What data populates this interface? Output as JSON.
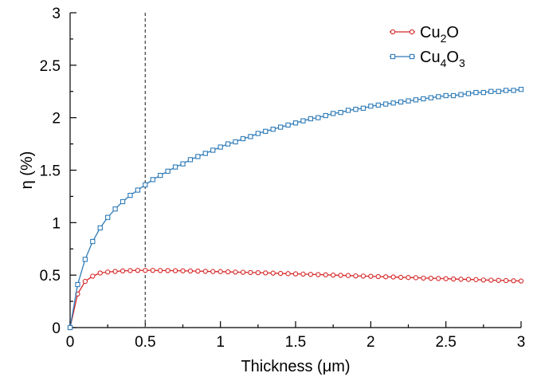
{
  "chart_data": {
    "type": "line",
    "xlabel": "Thickness (μm)",
    "ylabel": "η (%)",
    "xlim": [
      0,
      3
    ],
    "ylim": [
      0,
      3
    ],
    "x_ticks": [
      "0",
      "0.5",
      "1",
      "1.5",
      "2",
      "2.5",
      "3"
    ],
    "y_ticks": [
      "0",
      "0.5",
      "1",
      "1.5",
      "2",
      "2.5",
      "3"
    ],
    "x_minor_step": 0.25,
    "y_minor_step": 0.25,
    "grid": false,
    "legend_position": "top-right",
    "vline": {
      "x": 0.5,
      "style": "dashed",
      "color": "#555555"
    },
    "series": [
      {
        "name": "Cu₂O",
        "legend": {
          "base": "Cu",
          "sub1": "2",
          "mid": "O",
          "sub2": ""
        },
        "color": "#d62728",
        "marker": "circle",
        "x": [
          0,
          0.05,
          0.1,
          0.15,
          0.2,
          0.25,
          0.3,
          0.35,
          0.4,
          0.45,
          0.5,
          0.55,
          0.6,
          0.65,
          0.7,
          0.75,
          0.8,
          0.85,
          0.9,
          0.95,
          1.0,
          1.05,
          1.1,
          1.15,
          1.2,
          1.25,
          1.3,
          1.35,
          1.4,
          1.45,
          1.5,
          1.55,
          1.6,
          1.65,
          1.7,
          1.75,
          1.8,
          1.85,
          1.9,
          1.95,
          2.0,
          2.05,
          2.1,
          2.15,
          2.2,
          2.25,
          2.3,
          2.35,
          2.4,
          2.45,
          2.5,
          2.55,
          2.6,
          2.65,
          2.7,
          2.75,
          2.8,
          2.85,
          2.9,
          2.95,
          3.0
        ],
        "y": [
          0,
          0.32,
          0.44,
          0.49,
          0.52,
          0.53,
          0.535,
          0.54,
          0.543,
          0.545,
          0.545,
          0.545,
          0.544,
          0.543,
          0.542,
          0.541,
          0.539,
          0.538,
          0.536,
          0.534,
          0.533,
          0.531,
          0.529,
          0.527,
          0.525,
          0.523,
          0.521,
          0.519,
          0.516,
          0.514,
          0.512,
          0.51,
          0.507,
          0.505,
          0.503,
          0.5,
          0.498,
          0.496,
          0.493,
          0.491,
          0.489,
          0.486,
          0.484,
          0.482,
          0.479,
          0.477,
          0.475,
          0.472,
          0.47,
          0.468,
          0.466,
          0.463,
          0.461,
          0.459,
          0.457,
          0.454,
          0.452,
          0.45,
          0.448,
          0.446,
          0.444
        ]
      },
      {
        "name": "Cu₄O₃",
        "legend": {
          "base": "Cu",
          "sub1": "4",
          "mid": "O",
          "sub2": "3"
        },
        "color": "#2e7bb8",
        "marker": "square",
        "x": [
          0,
          0.05,
          0.1,
          0.15,
          0.2,
          0.25,
          0.3,
          0.35,
          0.4,
          0.45,
          0.5,
          0.55,
          0.6,
          0.65,
          0.7,
          0.75,
          0.8,
          0.85,
          0.9,
          0.95,
          1.0,
          1.05,
          1.1,
          1.15,
          1.2,
          1.25,
          1.3,
          1.35,
          1.4,
          1.45,
          1.5,
          1.55,
          1.6,
          1.65,
          1.7,
          1.75,
          1.8,
          1.85,
          1.9,
          1.95,
          2.0,
          2.05,
          2.1,
          2.15,
          2.2,
          2.25,
          2.3,
          2.35,
          2.4,
          2.45,
          2.5,
          2.55,
          2.6,
          2.65,
          2.7,
          2.75,
          2.8,
          2.85,
          2.9,
          2.95,
          3.0
        ],
        "y": [
          0,
          0.41,
          0.65,
          0.82,
          0.95,
          1.05,
          1.13,
          1.2,
          1.26,
          1.31,
          1.36,
          1.41,
          1.45,
          1.49,
          1.53,
          1.56,
          1.6,
          1.63,
          1.66,
          1.69,
          1.72,
          1.75,
          1.77,
          1.8,
          1.82,
          1.85,
          1.87,
          1.89,
          1.91,
          1.93,
          1.95,
          1.97,
          1.99,
          2.0,
          2.02,
          2.04,
          2.05,
          2.07,
          2.08,
          2.09,
          2.11,
          2.12,
          2.13,
          2.14,
          2.15,
          2.16,
          2.17,
          2.18,
          2.19,
          2.2,
          2.21,
          2.21,
          2.22,
          2.23,
          2.24,
          2.24,
          2.25,
          2.25,
          2.26,
          2.26,
          2.27
        ]
      }
    ]
  }
}
